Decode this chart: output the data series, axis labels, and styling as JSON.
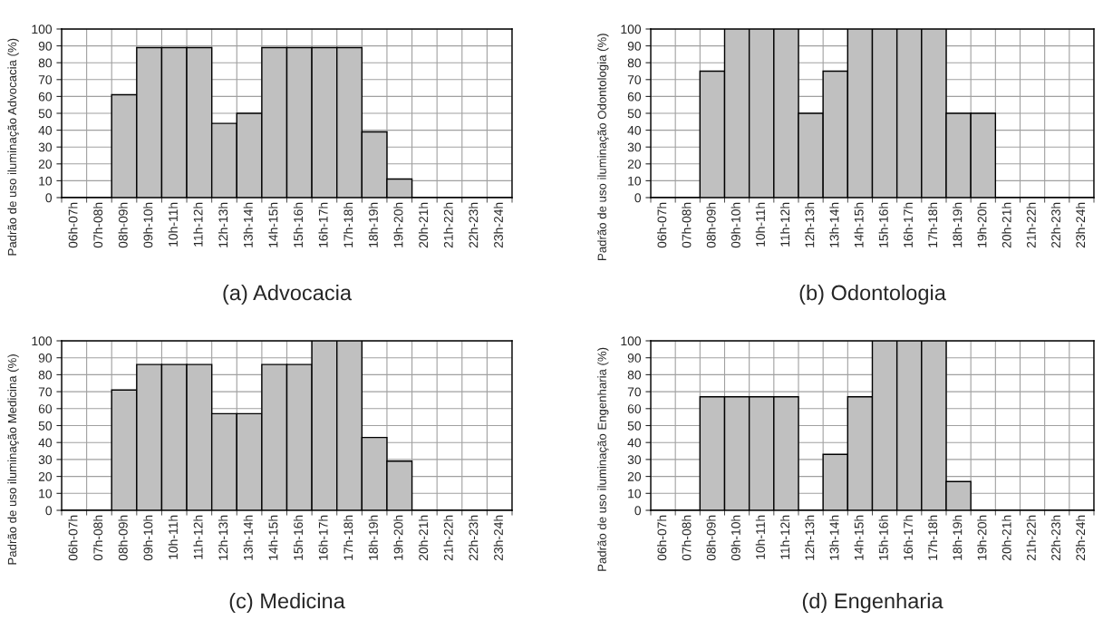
{
  "chart_data": [
    {
      "type": "bar",
      "title": "(a) Advocacia",
      "ylabel": "Padrão de uso iluminação Advocacia (%)",
      "categories": [
        "06h-07h",
        "07h-08h",
        "08h-09h",
        "09h-10h",
        "10h-11h",
        "11h-12h",
        "12h-13h",
        "13h-14h",
        "14h-15h",
        "15h-16h",
        "16h-17h",
        "17h-18h",
        "18h-19h",
        "19h-20h",
        "20h-21h",
        "21h-22h",
        "22h-23h",
        "23h-24h"
      ],
      "values": [
        0,
        0,
        61,
        89,
        89,
        89,
        44,
        50,
        89,
        89,
        89,
        89,
        39,
        11,
        0,
        0,
        0,
        0
      ],
      "color": "#c0c0c0",
      "ylim": [
        0,
        100
      ],
      "yticks": [
        0,
        10,
        20,
        30,
        40,
        50,
        60,
        70,
        80,
        90,
        100
      ],
      "grid": true
    },
    {
      "type": "bar",
      "title": "(b) Odontologia",
      "ylabel": "Padrão de uso iluminação Odontologia (%)",
      "categories": [
        "06h-07h",
        "07h-08h",
        "08h-09h",
        "09h-10h",
        "10h-11h",
        "11h-12h",
        "12h-13h",
        "13h-14h",
        "14h-15h",
        "15h-16h",
        "16h-17h",
        "17h-18h",
        "18h-19h",
        "19h-20h",
        "20h-21h",
        "21h-22h",
        "22h-23h",
        "23h-24h"
      ],
      "values": [
        0,
        0,
        75,
        100,
        100,
        100,
        50,
        75,
        100,
        100,
        100,
        100,
        50,
        50,
        0,
        0,
        0,
        0
      ],
      "color": "#c0c0c0",
      "ylim": [
        0,
        100
      ],
      "yticks": [
        0,
        10,
        20,
        30,
        40,
        50,
        60,
        70,
        80,
        90,
        100
      ],
      "grid": true
    },
    {
      "type": "bar",
      "title": "(c) Medicina",
      "ylabel": "Padrão de uso iluminação Medicina (%)",
      "categories": [
        "06h-07h",
        "07h-08h",
        "08h-09h",
        "09h-10h",
        "10h-11h",
        "11h-12h",
        "12h-13h",
        "13h-14h",
        "14h-15h",
        "15h-16h",
        "16h-17h",
        "17h-18h",
        "18h-19h",
        "19h-20h",
        "20h-21h",
        "21h-22h",
        "22h-23h",
        "23h-24h"
      ],
      "values": [
        0,
        0,
        71,
        86,
        86,
        86,
        57,
        57,
        86,
        86,
        100,
        100,
        43,
        29,
        0,
        0,
        0,
        0
      ],
      "color": "#c0c0c0",
      "ylim": [
        0,
        100
      ],
      "yticks": [
        0,
        10,
        20,
        30,
        40,
        50,
        60,
        70,
        80,
        90,
        100
      ],
      "grid": true
    },
    {
      "type": "bar",
      "title": "(d) Engenharia",
      "ylabel": "Padrão de uso iluminação Engenharia (%)",
      "categories": [
        "06h-07h",
        "07h-08h",
        "08h-09h",
        "09h-10h",
        "10h-11h",
        "11h-12h",
        "12h-13h",
        "13h-14h",
        "14h-15h",
        "15h-16h",
        "16h-17h",
        "17h-18h",
        "18h-19h",
        "19h-20h",
        "20h-21h",
        "21h-22h",
        "22h-23h",
        "23h-24h"
      ],
      "values": [
        0,
        0,
        67,
        67,
        67,
        67,
        0,
        33,
        67,
        100,
        100,
        100,
        17,
        0,
        0,
        0,
        0,
        0
      ],
      "color": "#c0c0c0",
      "ylim": [
        0,
        100
      ],
      "yticks": [
        0,
        10,
        20,
        30,
        40,
        50,
        60,
        70,
        80,
        90,
        100
      ],
      "grid": true
    }
  ]
}
